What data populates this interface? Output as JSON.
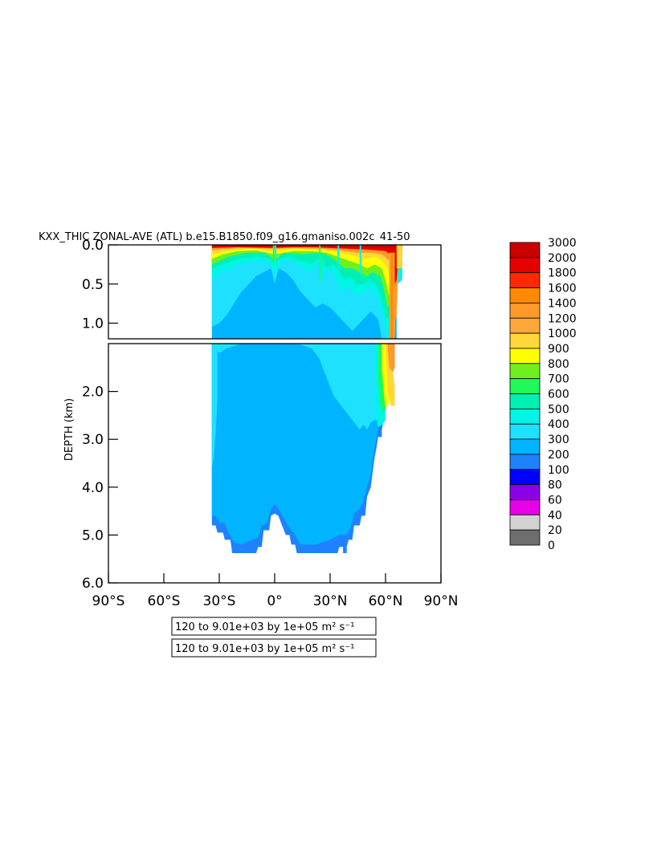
{
  "chart_data": {
    "type": "heatmap",
    "title": "KXX_THIC ZONAL-AVE (ATL) b.e15.B1850.f09_g16.gmaniso.002c   41-50 ",
    "xlabel": "",
    "ylabel": "DEPTH (km)",
    "x_ticks": [
      "90°S",
      "60°S",
      "30°S",
      "0°",
      "30°N",
      "60°N",
      "90°N"
    ],
    "x_tick_values": [
      -90,
      -60,
      -30,
      0,
      30,
      60,
      90
    ],
    "xlim": [
      -90,
      90
    ],
    "upper_panel": {
      "ylim": [
        0,
        1.2
      ],
      "y_ticks": [
        "0.0",
        "0.5",
        "1.0"
      ],
      "y_tick_values": [
        0.0,
        0.5,
        1.0
      ]
    },
    "lower_panel": {
      "ylim": [
        1.0,
        6.0
      ],
      "y_ticks": [
        "2.0",
        "3.0",
        "4.0",
        "5.0",
        "6.0"
      ],
      "y_tick_values": [
        2.0,
        3.0,
        4.0,
        5.0,
        6.0
      ]
    },
    "colorbar": {
      "labels": [
        "3000",
        "2000",
        "1800",
        "1600",
        "1400",
        "1200",
        "1000",
        "900",
        "800",
        "700",
        "600",
        "500",
        "400",
        "300",
        "200",
        "100",
        "80",
        "60",
        "40",
        "20",
        "0"
      ],
      "colors": [
        "#c80000",
        "#e60000",
        "#ff2a00",
        "#ff8a00",
        "#ff9a2a",
        "#ffa83a",
        "#ffd73a",
        "#ffff00",
        "#6ef01e",
        "#1efa5a",
        "#00f0b4",
        "#00f5e6",
        "#1ee1ff",
        "#00b4ff",
        "#1e82ff",
        "#0000ff",
        "#8c00e6",
        "#e600e6",
        "#d2d2d2",
        "#6e6e6e"
      ]
    },
    "boxes": [
      "120 to 9.01e+03 by 1e+05 m² s⁻¹",
      "120 to 9.01e+03 by 1e+05 m² s⁻¹"
    ]
  }
}
